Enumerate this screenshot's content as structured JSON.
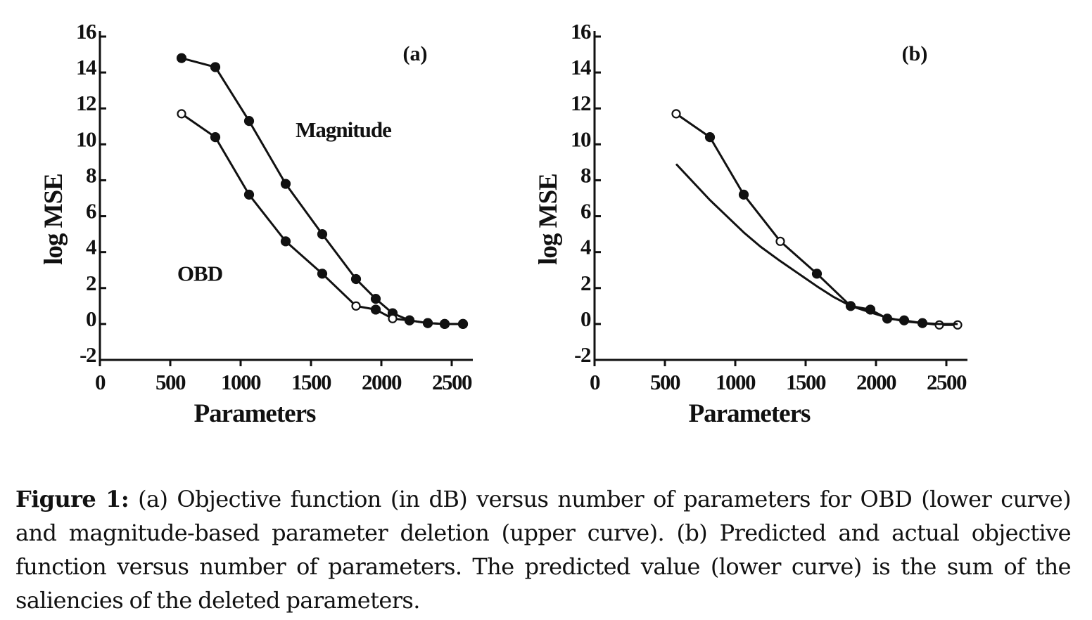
{
  "chart_data": [
    {
      "type": "line",
      "panel_label": "(a)",
      "xlabel": "Parameters",
      "ylabel": "log MSE",
      "xlim": [
        0,
        2600
      ],
      "ylim": [
        -2,
        16
      ],
      "xticks": [
        "0",
        "500",
        "1000",
        "1500",
        "2000",
        "2500"
      ],
      "yticks": [
        "-2",
        "0",
        "2",
        "4",
        "6",
        "8",
        "10",
        "12",
        "14",
        "16"
      ],
      "grid": false,
      "annotations": [
        {
          "text": "Magnitude",
          "x": 1730,
          "y": 10.4
        },
        {
          "text": "OBD",
          "x": 710,
          "y": 2.4
        }
      ],
      "series": [
        {
          "x": [
            580,
            820,
            1060,
            1320,
            1580,
            1820,
            1960,
            2080,
            2200,
            2330,
            2450,
            2580
          ],
          "y": [
            14.8,
            14.3,
            11.3,
            7.8,
            5.0,
            2.5,
            1.4,
            0.6,
            0.2,
            0.05,
            0.0,
            0.0
          ],
          "markers": [
            "filled",
            "filled",
            "filled",
            "filled",
            "filled",
            "filled",
            "filled",
            "filled",
            "filled",
            "filled",
            "filled",
            "filled"
          ]
        },
        {
          "x": [
            580,
            820,
            1060,
            1320,
            1580,
            1820,
            1960,
            2080,
            2200,
            2330,
            2450,
            2580
          ],
          "y": [
            11.7,
            10.4,
            7.2,
            4.6,
            2.8,
            1.0,
            0.8,
            0.3,
            0.2,
            0.05,
            0.0,
            0.0
          ],
          "markers": [
            "open",
            "filled",
            "filled",
            "filled",
            "filled",
            "open",
            "filled",
            "open",
            "filled",
            "filled",
            "filled",
            "filled"
          ]
        }
      ]
    },
    {
      "type": "line",
      "panel_label": "(b)",
      "xlabel": "Parameters",
      "ylabel": "log MSE",
      "xlim": [
        0,
        2600
      ],
      "ylim": [
        -2,
        16
      ],
      "xticks": [
        "0",
        "500",
        "1000",
        "1500",
        "2000",
        "2500"
      ],
      "yticks": [
        "-2",
        "0",
        "2",
        "4",
        "6",
        "8",
        "10",
        "12",
        "14",
        "16"
      ],
      "grid": false,
      "annotations": [],
      "series": [
        {
          "x": [
            580,
            820,
            1060,
            1320,
            1580,
            1820,
            1960,
            2080,
            2200,
            2330,
            2450,
            2580
          ],
          "y": [
            11.7,
            10.4,
            7.2,
            4.6,
            2.8,
            1.0,
            0.8,
            0.3,
            0.2,
            0.05,
            -0.05,
            -0.05
          ],
          "markers": [
            "open",
            "filled",
            "filled",
            "open",
            "filled",
            "filled",
            "filled",
            "filled",
            "filled",
            "filled",
            "open",
            "open"
          ]
        },
        {
          "x": [
            580,
            700,
            820,
            940,
            1060,
            1180,
            1320,
            1450,
            1580,
            1700,
            1820,
            1960,
            2080,
            2200,
            2330,
            2450,
            2580
          ],
          "y": [
            8.9,
            7.9,
            6.9,
            6.0,
            5.1,
            4.3,
            3.5,
            2.8,
            2.1,
            1.5,
            1.0,
            0.65,
            0.35,
            0.15,
            0.05,
            0.0,
            0.0
          ],
          "markers": []
        }
      ]
    }
  ],
  "caption": {
    "label": "Figure 1:",
    "text": " (a) Objective function (in dB) versus number of parameters for OBD (lower curve) and magnitude-based parameter deletion (upper curve). (b) Predicted and actual objective function versus number of parameters. The predicted value (lower curve) is the sum of the saliencies of the deleted parameters."
  }
}
